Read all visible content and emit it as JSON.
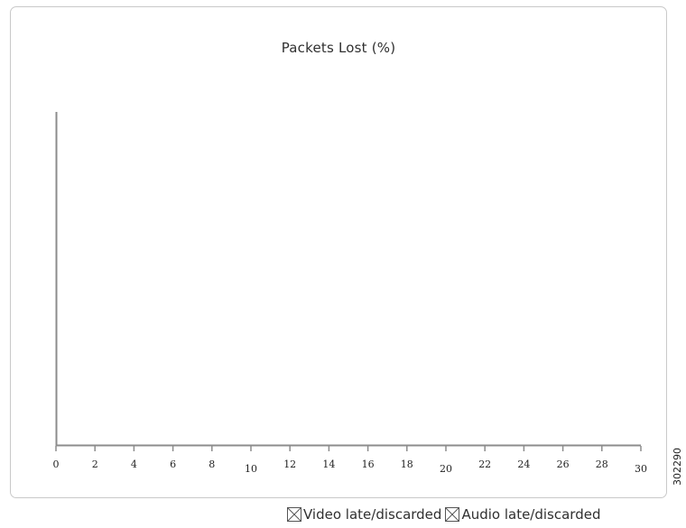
{
  "chart_data": {
    "type": "line",
    "title": "Packets Lost (%)",
    "xlabel": "",
    "ylabel": "",
    "xlim": [
      0,
      30
    ],
    "x_ticks": [
      0,
      2,
      4,
      6,
      8,
      10,
      12,
      14,
      16,
      18,
      20,
      22,
      24,
      26,
      28,
      30
    ],
    "grid": false,
    "legend_position": "bottom-right",
    "series": [
      {
        "name": "Video late/discarded",
        "x": [],
        "values": []
      },
      {
        "name": "Audio late/discarded",
        "x": [],
        "values": []
      }
    ]
  },
  "legend": {
    "video_label": "Video late/discarded",
    "audio_label": "Audio late/discarded"
  },
  "figure_id": "302290",
  "colors": {
    "axis": "#8c8c8c",
    "frame": "#c9c9c9",
    "text": "#303030"
  }
}
